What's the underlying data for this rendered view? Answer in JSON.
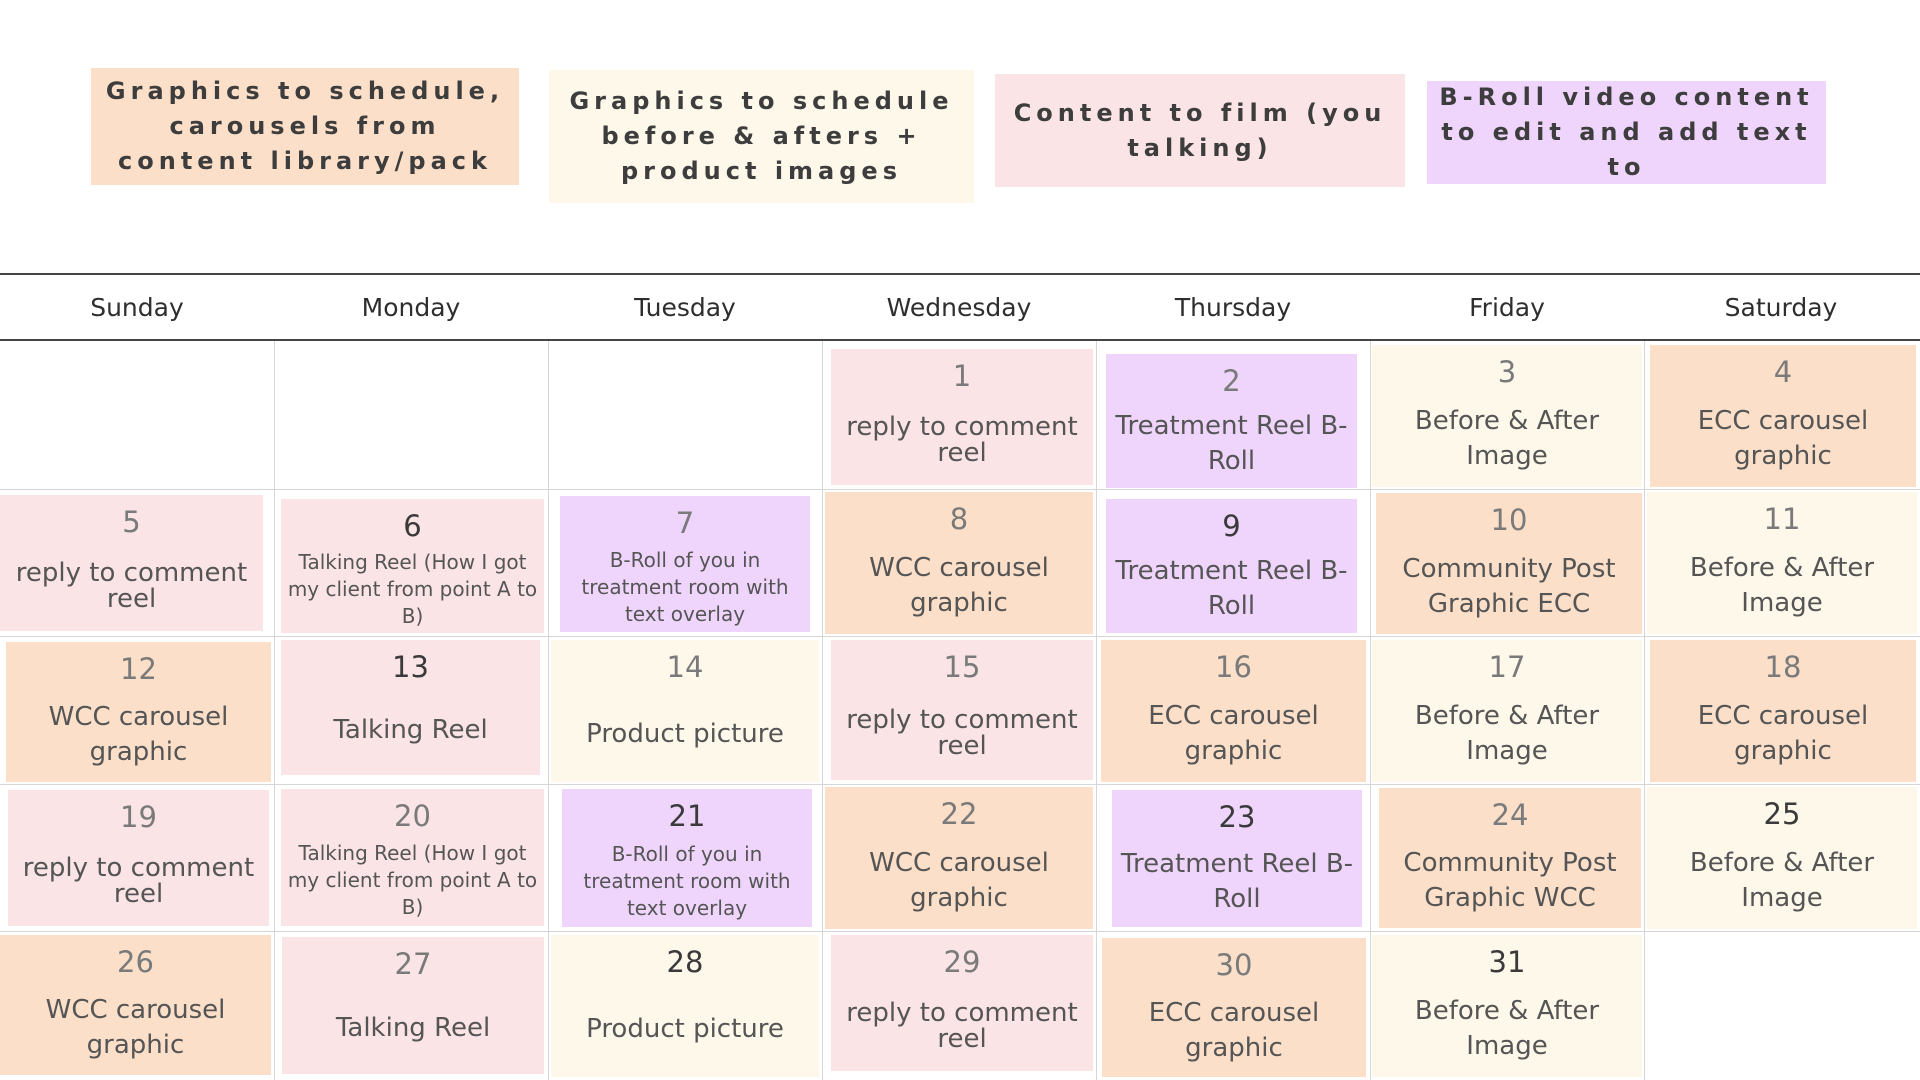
{
  "colors": {
    "peach": "#fbdfc9",
    "cream": "#fef8eb",
    "pink": "#fbe4e6",
    "lavender": "#efd5fc"
  },
  "legend": [
    {
      "text": "Graphics to schedule, carousels from content library/pack",
      "color": "#fbdfc9"
    },
    {
      "text": "Graphics to schedule before & afters + product images",
      "color": "#fef8eb"
    },
    {
      "text": "Content to film (you talking)",
      "color": "#fbe4e6"
    },
    {
      "text": "B-Roll video content to edit and add text to",
      "color": "#efd5fc"
    }
  ],
  "calendar": {
    "days": [
      "Sunday",
      "Monday",
      "Tuesday",
      "Wednesday",
      "Thursday",
      "Friday",
      "Saturday"
    ],
    "entries": [
      {
        "day": "1",
        "label": "reply to comment reel",
        "color": "#fbe4e6",
        "style": "tight"
      },
      {
        "day": "2",
        "label": "Treatment Reel B-Roll",
        "color": "#efd5fc",
        "style": ""
      },
      {
        "day": "3",
        "label": "Before & After Image",
        "color": "#fef8eb",
        "style": ""
      },
      {
        "day": "4",
        "label": "ECC carousel graphic",
        "color": "#fbdfc9",
        "style": ""
      },
      {
        "day": "5",
        "label": "reply to comment reel",
        "color": "#fbe4e6",
        "style": "tight"
      },
      {
        "day": "6",
        "label": "Talking Reel (How I got my client from point A to B)",
        "color": "#fbe4e6",
        "style": "small"
      },
      {
        "day": "7",
        "label": "B-Roll of you in treatment room with text overlay",
        "color": "#efd5fc",
        "style": "small"
      },
      {
        "day": "8",
        "label": "WCC carousel graphic",
        "color": "#fbdfc9",
        "style": ""
      },
      {
        "day": "9",
        "label": "Treatment Reel B-Roll",
        "color": "#efd5fc",
        "style": ""
      },
      {
        "day": "10",
        "label": "Community Post Graphic ECC",
        "color": "#fbdfc9",
        "style": ""
      },
      {
        "day": "11",
        "label": "Before & After Image",
        "color": "#fef8eb",
        "style": ""
      },
      {
        "day": "12",
        "label": "WCC carousel graphic",
        "color": "#fbdfc9",
        "style": ""
      },
      {
        "day": "13",
        "label": "Talking Reel",
        "color": "#fbe4e6",
        "style": ""
      },
      {
        "day": "14",
        "label": "Product picture",
        "color": "#fef8eb",
        "style": ""
      },
      {
        "day": "15",
        "label": "reply to comment reel",
        "color": "#fbe4e6",
        "style": "tight"
      },
      {
        "day": "16",
        "label": "ECC carousel graphic",
        "color": "#fbdfc9",
        "style": ""
      },
      {
        "day": "17",
        "label": "Before & After Image",
        "color": "#fef8eb",
        "style": ""
      },
      {
        "day": "18",
        "label": "ECC carousel graphic",
        "color": "#fbdfc9",
        "style": ""
      },
      {
        "day": "19",
        "label": "reply to comment reel",
        "color": "#fbe4e6",
        "style": "tight"
      },
      {
        "day": "20",
        "label": "Talking Reel (How I got my client from point A to B)",
        "color": "#fbe4e6",
        "style": "small"
      },
      {
        "day": "21",
        "label": "B-Roll of you in treatment room with text overlay",
        "color": "#efd5fc",
        "style": "small"
      },
      {
        "day": "22",
        "label": "WCC carousel graphic",
        "color": "#fbdfc9",
        "style": ""
      },
      {
        "day": "23",
        "label": "Treatment Reel B-Roll",
        "color": "#efd5fc",
        "style": ""
      },
      {
        "day": "24",
        "label": "Community Post Graphic WCC",
        "color": "#fbdfc9",
        "style": ""
      },
      {
        "day": "25",
        "label": "Before & After Image",
        "color": "#fef8eb",
        "style": ""
      },
      {
        "day": "26",
        "label": "WCC carousel graphic",
        "color": "#fbdfc9",
        "style": ""
      },
      {
        "day": "27",
        "label": "Talking Reel",
        "color": "#fbe4e6",
        "style": ""
      },
      {
        "day": "28",
        "label": "Product picture",
        "color": "#fef8eb",
        "style": ""
      },
      {
        "day": "29",
        "label": "reply to comment reel",
        "color": "#fbe4e6",
        "style": "tight"
      },
      {
        "day": "30",
        "label": "ECC carousel graphic",
        "color": "#fbdfc9",
        "style": ""
      },
      {
        "day": "31",
        "label": "Before & After Image",
        "color": "#fef8eb",
        "style": ""
      }
    ]
  }
}
